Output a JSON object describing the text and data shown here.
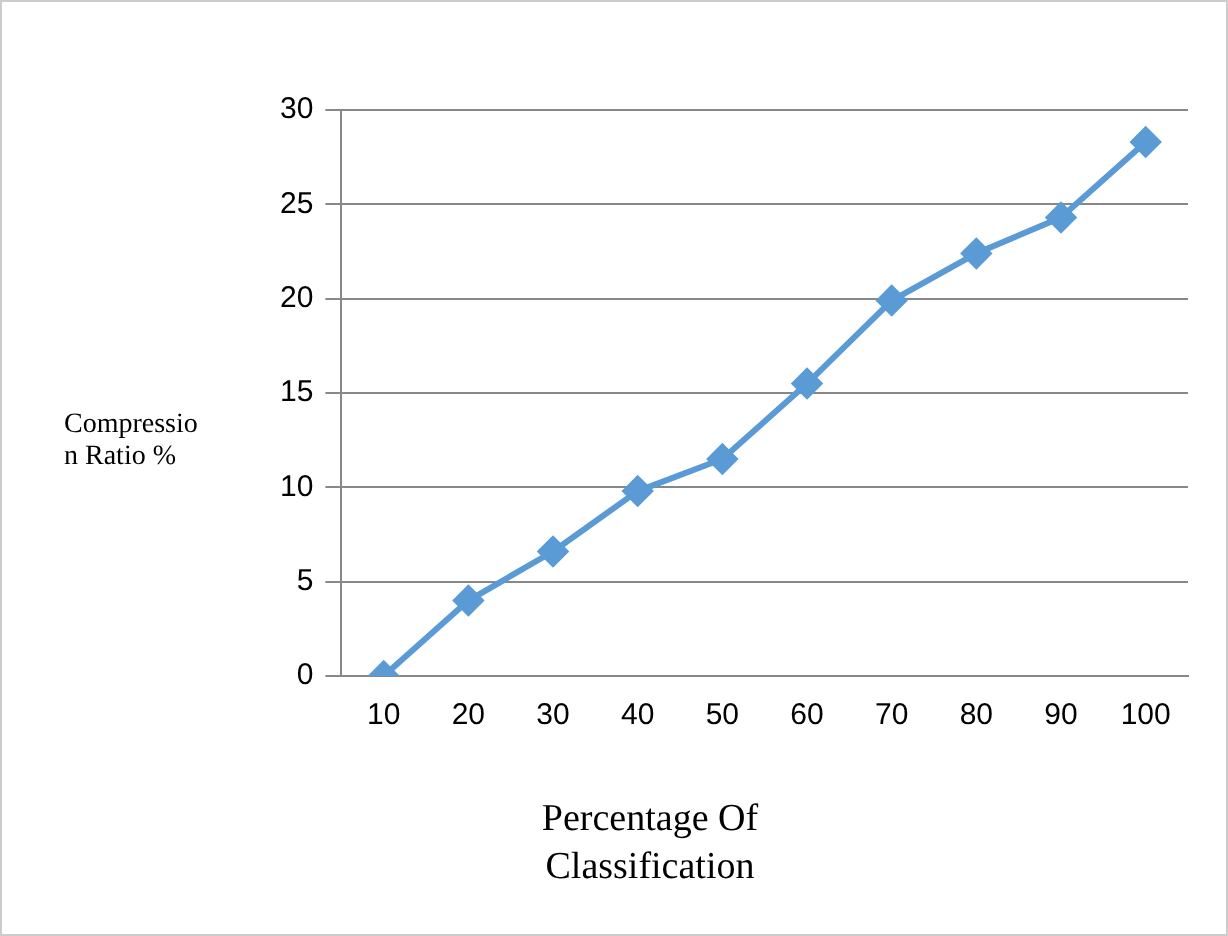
{
  "chart_data": {
    "type": "line",
    "xlabel": "Percentage Of Classification",
    "ylabel": "Compression Ratio %",
    "categories": [
      "10",
      "20",
      "30",
      "40",
      "50",
      "60",
      "70",
      "80",
      "90",
      "100"
    ],
    "series": [
      {
        "color": "#5b9bd5",
        "values": [
          0,
          4,
          6.6,
          9.8,
          11.5,
          15.5,
          19.9,
          22.4,
          24.3,
          28.3
        ]
      }
    ],
    "ylim": [
      0,
      30
    ],
    "yticks": [
      0,
      5,
      10,
      15,
      20,
      25,
      30
    ],
    "grid": "y",
    "marker": "diamond",
    "line_style": "solid",
    "legend": false
  }
}
